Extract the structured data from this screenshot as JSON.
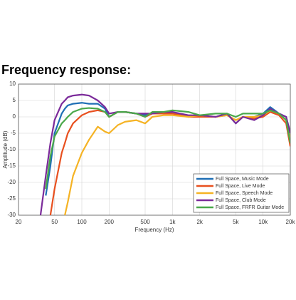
{
  "chart_data": {
    "type": "line",
    "title": "Frequency response:",
    "xlabel": "Frequency (Hz)",
    "ylabel": "Amplitude (dB)",
    "xscale": "log",
    "grid": true,
    "legend": "lower right",
    "x": [
      35,
      40,
      45,
      50,
      60,
      65,
      70,
      80,
      100,
      120,
      150,
      180,
      200,
      250,
      300,
      400,
      500,
      600,
      800,
      1000,
      1500,
      2000,
      3000,
      4000,
      5000,
      6000,
      8000,
      10000,
      12000,
      15000,
      18000,
      20000
    ],
    "xlim": [
      20,
      20000
    ],
    "xticks": [
      20,
      50,
      100,
      200,
      500,
      {
        "value": 1000,
        "label": "1k"
      },
      {
        "value": 2000,
        "label": "2k"
      },
      {
        "value": 5000,
        "label": "5k"
      },
      {
        "value": 10000,
        "label": "10k"
      },
      {
        "value": 20000,
        "label": "20k"
      }
    ],
    "ylim": [
      -30,
      10
    ],
    "yticks": [
      10,
      5,
      0,
      -5,
      -10,
      -15,
      -20,
      -25,
      -30
    ],
    "series": [
      {
        "name": "Full Space, Music Mode",
        "color": "#1f6fb5",
        "values": [
          null,
          -24,
          -15,
          -5,
          1,
          2.5,
          3.5,
          4,
          4.3,
          4,
          4,
          2.5,
          0,
          1.5,
          1.5,
          1,
          0.5,
          1,
          1,
          1.5,
          0,
          0.5,
          0,
          1,
          -2,
          0,
          0,
          1,
          3,
          1,
          0,
          -5
        ]
      },
      {
        "name": "Full Space, Live Mode",
        "color": "#e8501f",
        "values": [
          null,
          null,
          -30,
          -22,
          -11,
          -8,
          -5,
          -2,
          0.5,
          1.5,
          2,
          1.5,
          0,
          1.5,
          1.5,
          1,
          0,
          1,
          1,
          1,
          0,
          0,
          0,
          0.5,
          -1,
          0,
          -0.5,
          0,
          1.5,
          0.5,
          -2,
          -9
        ]
      },
      {
        "name": "Full Space, Speech Mode",
        "color": "#f5b324",
        "values": [
          null,
          null,
          null,
          null,
          null,
          -30,
          -26,
          -18,
          -11,
          -7,
          -3,
          -4.5,
          -5,
          -2.5,
          -1.5,
          -1,
          -2,
          0,
          0.5,
          0.5,
          0,
          0.5,
          0,
          0.5,
          -1,
          0,
          0,
          0.5,
          2,
          1,
          -1,
          -7
        ]
      },
      {
        "name": "Full Space, Club Mode",
        "color": "#7b2a9a",
        "values": [
          -30,
          -18,
          -8,
          -1,
          4,
          5,
          6,
          6.5,
          6.8,
          6.5,
          5,
          3,
          1,
          1.5,
          1.5,
          1,
          1,
          1,
          1.5,
          1.5,
          0.5,
          0.5,
          0,
          1,
          -2,
          0,
          -1,
          0.5,
          2.5,
          1,
          0,
          -5
        ]
      },
      {
        "name": "Full Space, FRFR Guitar Mode",
        "color": "#4aa84a",
        "values": [
          null,
          -22,
          -12,
          -6,
          -2,
          -1,
          0,
          1.5,
          2.5,
          2.7,
          2.5,
          1.5,
          0,
          1.5,
          1.5,
          1,
          0,
          1.5,
          1.5,
          2,
          1.5,
          0.5,
          1,
          1,
          0,
          1,
          1,
          1,
          2,
          1,
          -1,
          -8
        ]
      }
    ]
  }
}
